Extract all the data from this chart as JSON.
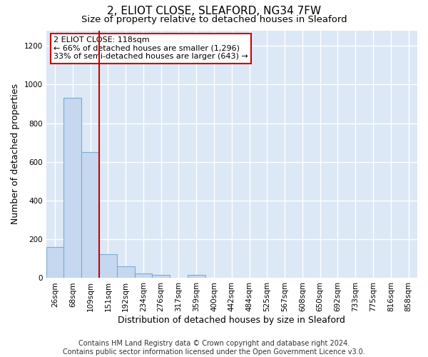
{
  "title1": "2, ELIOT CLOSE, SLEAFORD, NG34 7FW",
  "title2": "Size of property relative to detached houses in Sleaford",
  "xlabel": "Distribution of detached houses by size in Sleaford",
  "ylabel": "Number of detached properties",
  "bin_labels": [
    "26sqm",
    "68sqm",
    "109sqm",
    "151sqm",
    "192sqm",
    "234sqm",
    "276sqm",
    "317sqm",
    "359sqm",
    "400sqm",
    "442sqm",
    "484sqm",
    "525sqm",
    "567sqm",
    "608sqm",
    "650sqm",
    "692sqm",
    "733sqm",
    "775sqm",
    "816sqm",
    "858sqm"
  ],
  "bar_heights": [
    160,
    930,
    650,
    125,
    60,
    25,
    15,
    0,
    15,
    0,
    0,
    0,
    0,
    0,
    0,
    0,
    0,
    0,
    0,
    0,
    0
  ],
  "bar_color": "#c5d8f0",
  "bar_edge_color": "#7aadd4",
  "bar_edge_width": 0.8,
  "red_line_x": 2.5,
  "ylim": [
    0,
    1280
  ],
  "yticks": [
    0,
    200,
    400,
    600,
    800,
    1000,
    1200
  ],
  "annotation_text": "2 ELIOT CLOSE: 118sqm\n← 66% of detached houses are smaller (1,296)\n33% of semi-detached houses are larger (643) →",
  "annotation_box_color": "#ffffff",
  "annotation_box_edge_color": "#cc0000",
  "footer1": "Contains HM Land Registry data © Crown copyright and database right 2024.",
  "footer2": "Contains public sector information licensed under the Open Government Licence v3.0.",
  "fig_bg_color": "#ffffff",
  "plot_bg_color": "#dce8f5",
  "grid_color": "#ffffff",
  "title1_fontsize": 11,
  "title2_fontsize": 9.5,
  "axis_label_fontsize": 9,
  "tick_fontsize": 7.5,
  "annotation_fontsize": 8,
  "footer_fontsize": 7
}
